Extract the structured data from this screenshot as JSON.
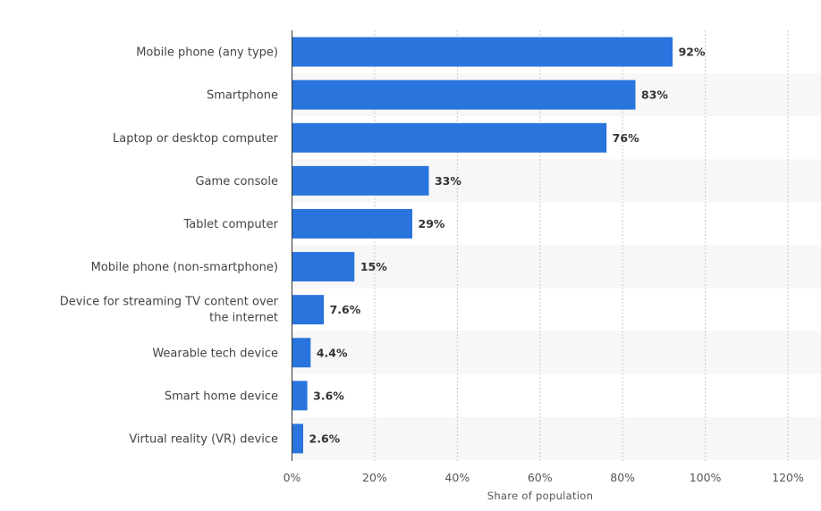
{
  "chart_data": {
    "type": "bar",
    "orientation": "horizontal",
    "categories": [
      "Mobile phone (any type)",
      "Smartphone",
      "Laptop or desktop computer",
      "Game console",
      "Tablet computer",
      "Mobile phone (non-smartphone)",
      "Device for streaming TV content over the internet",
      "Wearable tech device",
      "Smart home device",
      "Virtual reality (VR) device"
    ],
    "values": [
      92,
      83,
      76,
      33,
      29,
      15,
      7.6,
      4.4,
      3.6,
      2.6
    ],
    "value_labels": [
      "92%",
      "83%",
      "76%",
      "33%",
      "29%",
      "15%",
      "7.6%",
      "4.4%",
      "3.6%",
      "2.6%"
    ],
    "xlim": [
      0,
      120
    ],
    "x_ticks": [
      "0%",
      "20%",
      "40%",
      "60%",
      "80%",
      "100%",
      "120%"
    ],
    "xlabel": "Share of population",
    "ylabel": "",
    "title": "",
    "bar_color": "#2a74dd",
    "grid": true
  }
}
